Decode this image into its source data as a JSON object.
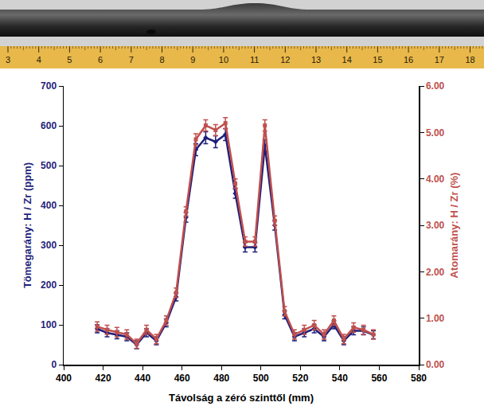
{
  "chart_data": {
    "type": "line",
    "x_label": "Távolság a zéró szinttől (mm)",
    "y_label": "Tömegarány: H / Zr (ppm)",
    "y2_label": "Atomarány: H / Zr (%)",
    "x": [
      417,
      422,
      427,
      432,
      437,
      442,
      447,
      452,
      457,
      462,
      467,
      472,
      477,
      482,
      487,
      492,
      497,
      502,
      507,
      512,
      517,
      522,
      527,
      532,
      537,
      542,
      547,
      552,
      557
    ],
    "series": [
      {
        "name": "Tömegarány: H / Zr (ppm)",
        "color": "#1f1f7a",
        "marker": "diamond",
        "axis": "y",
        "values": [
          90,
          80,
          75,
          70,
          50,
          80,
          60,
          105,
          170,
          370,
          540,
          570,
          560,
          578,
          430,
          295,
          295,
          550,
          350,
          125,
          70,
          80,
          90,
          70,
          100,
          60,
          85,
          85,
          75
        ],
        "errors": [
          10,
          10,
          10,
          10,
          10,
          10,
          10,
          10,
          10,
          12,
          15,
          15,
          15,
          15,
          12,
          12,
          12,
          15,
          12,
          10,
          10,
          10,
          10,
          10,
          10,
          10,
          10,
          10,
          10
        ]
      },
      {
        "name": "Atomarány: H / Zr (%)",
        "color": "#c0504d",
        "marker": "square",
        "axis": "y2",
        "values": [
          0.82,
          0.75,
          0.7,
          0.65,
          0.45,
          0.75,
          0.55,
          0.95,
          1.55,
          3.3,
          4.85,
          5.15,
          5.05,
          5.2,
          3.9,
          2.65,
          2.65,
          5.15,
          3.1,
          1.15,
          0.65,
          0.75,
          0.85,
          0.65,
          0.95,
          0.55,
          0.8,
          0.75,
          0.65
        ],
        "errors": [
          0.1,
          0.1,
          0.1,
          0.1,
          0.1,
          0.1,
          0.1,
          0.1,
          0.1,
          0.1,
          0.12,
          0.12,
          0.12,
          0.12,
          0.1,
          0.1,
          0.1,
          0.12,
          0.1,
          0.1,
          0.1,
          0.1,
          0.1,
          0.1,
          0.1,
          0.1,
          0.1,
          0.1,
          0.1
        ]
      }
    ],
    "xlim": [
      400,
      580
    ],
    "xticks": [
      400,
      420,
      440,
      460,
      480,
      500,
      520,
      540,
      560,
      580
    ],
    "ylim": [
      0,
      700
    ],
    "yticks": [
      0,
      100,
      200,
      300,
      400,
      500,
      600,
      700
    ],
    "y2lim": [
      0,
      6
    ],
    "y2ticks": [
      {
        "value": 0,
        "label": "0.00"
      },
      {
        "value": 1,
        "label": "1.00"
      },
      {
        "value": 2,
        "label": "2.00"
      },
      {
        "value": 3,
        "label": "3.00"
      },
      {
        "value": 4,
        "label": "4.00"
      },
      {
        "value": 5,
        "label": "5.00"
      },
      {
        "value": 6,
        "label": "6.00"
      }
    ],
    "grid": false,
    "photo_ruler_labels": [
      3,
      4,
      5,
      6,
      7,
      8,
      9,
      10,
      11,
      12,
      13,
      14,
      15,
      16,
      17,
      18
    ]
  }
}
